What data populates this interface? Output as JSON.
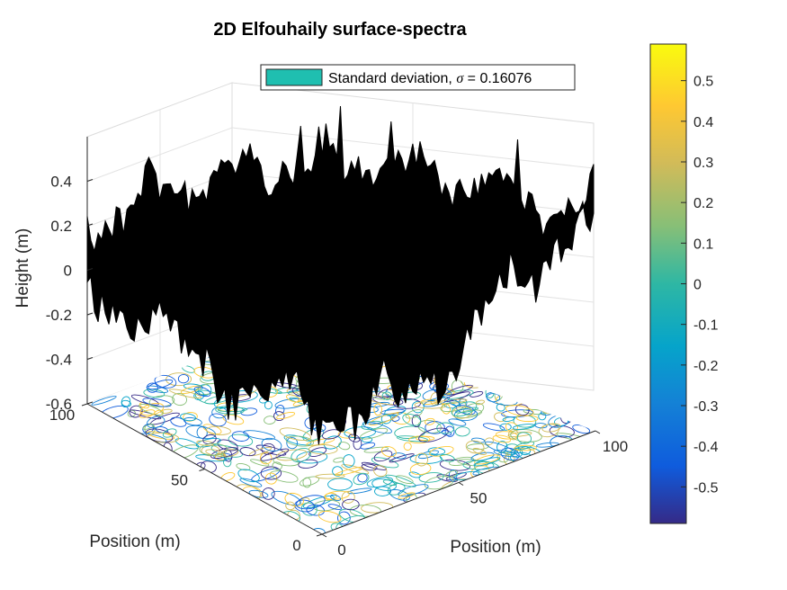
{
  "chart_data": {
    "type": "surface3d",
    "title": "2D Elfouhaily surface-spectra",
    "xlabel": "Position (m)",
    "ylabel": "Position (m)",
    "zlabel": "Height (m)",
    "xlim": [
      0,
      100
    ],
    "ylim": [
      0,
      100
    ],
    "zlim": [
      -0.6,
      0.6
    ],
    "x_ticks": [
      "0",
      "50",
      "100"
    ],
    "y_ticks": [
      "0",
      "50",
      "100"
    ],
    "z_ticks": [
      "-0.6",
      "-0.4",
      "-0.2",
      "0",
      "0.2",
      "0.4"
    ],
    "surface_color": "#000000",
    "contour_on_floor": true,
    "legend": {
      "label_prefix": "Standard deviation, ",
      "sigma_symbol": "σ",
      "label_suffix": " = 0.16076",
      "swatch_color": "#1fbfb0",
      "location": "top-center"
    },
    "colorbar": {
      "colormap": "parula",
      "range": [
        -0.59,
        0.59
      ],
      "ticks": [
        "0.5",
        "0.4",
        "0.3",
        "0.2",
        "0.1",
        "0",
        "-0.1",
        "-0.2",
        "-0.3",
        "-0.4",
        "-0.5"
      ],
      "tick_values": [
        0.5,
        0.4,
        0.3,
        0.2,
        0.1,
        0,
        -0.1,
        -0.2,
        -0.3,
        -0.4,
        -0.5
      ]
    },
    "grid": true
  }
}
